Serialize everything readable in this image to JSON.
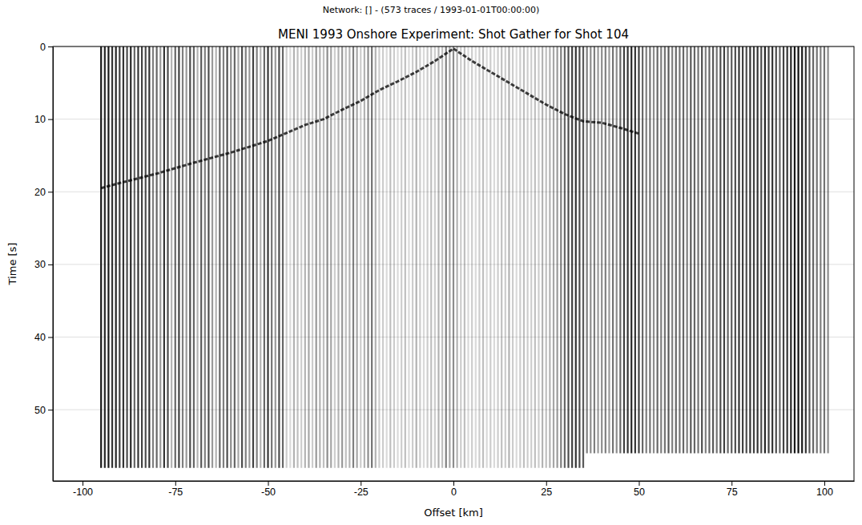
{
  "chart_data": {
    "type": "seismic_gather",
    "suptitle": "Network:  [] - (573 traces / 1993-01-01T00:00:00)",
    "title": "MENI 1993 Onshore Experiment: Shot Gather for Shot 104",
    "x_label": "Offset [km]",
    "y_label": "Time [s]",
    "xlim": [
      -108,
      108
    ],
    "ylim": [
      59.8,
      0
    ],
    "xticks": [
      -100,
      -75,
      -50,
      -25,
      0,
      25,
      50,
      75,
      100
    ],
    "yticks": [
      0,
      10,
      20,
      30,
      40,
      50
    ],
    "grid": "y",
    "color": "#000000",
    "traces": {
      "x": [
        -95,
        -94,
        -93,
        -92,
        -91,
        -90,
        -89,
        -88,
        -87,
        -86,
        -85,
        -84,
        -83,
        -82,
        -81,
        -80,
        -79,
        -78,
        -77,
        -76,
        -75,
        -74,
        -73,
        -72,
        -71,
        -70,
        -69,
        -68,
        -67,
        -66,
        -65,
        -64,
        -63,
        -62,
        -61,
        -60,
        -59,
        -58,
        -57,
        -56,
        -55,
        -54,
        -53,
        -52,
        -51,
        -50,
        -49,
        -48,
        -47,
        -46,
        -45,
        -44,
        -43,
        -42,
        -41,
        -40,
        -39,
        -38,
        -37,
        -36,
        -35,
        -34,
        -33,
        -32,
        -31,
        -30,
        -29,
        -28,
        -27,
        -26,
        -25,
        -24,
        -23,
        -22,
        -21,
        -20,
        -19,
        -18,
        -17,
        -16,
        -15,
        -14,
        -13,
        -12,
        -11,
        -10,
        -9,
        -8,
        -7,
        -6,
        -5,
        -4,
        -3,
        -2,
        -1,
        0,
        1,
        2,
        3,
        4,
        5,
        6,
        7,
        8,
        9,
        10,
        11,
        12,
        13,
        14,
        15,
        16,
        17,
        18,
        19,
        20,
        21,
        22,
        23,
        24,
        25,
        26,
        27,
        28,
        29,
        30,
        31,
        32,
        33,
        34,
        35,
        36,
        37,
        38,
        39,
        40,
        41,
        42,
        43,
        44,
        45,
        46,
        47,
        48,
        49,
        50,
        51,
        52,
        53,
        54,
        55,
        56,
        57,
        58,
        59,
        60,
        61,
        62,
        63,
        64,
        65,
        66,
        67,
        68,
        69,
        70,
        71,
        72,
        73,
        74,
        75,
        76,
        77,
        78,
        79,
        80,
        81,
        82,
        83,
        84,
        85,
        86,
        87,
        88,
        89,
        90,
        91,
        92,
        93,
        94,
        95,
        96,
        97,
        98,
        99,
        100,
        101
      ],
      "intensity": [
        0.9,
        0.85,
        0.9,
        0.8,
        0.85,
        0.75,
        0.8,
        0.7,
        0.85,
        0.6,
        0.8,
        0.75,
        0.7,
        0.8,
        0.5,
        0.6,
        0.4,
        0.8,
        0.7,
        0.3,
        0.6,
        0.75,
        0.5,
        0.4,
        0.7,
        0.6,
        0.3,
        0.65,
        0.5,
        0.7,
        0.4,
        0.3,
        0.6,
        0.5,
        0.7,
        0.45,
        0.6,
        0.35,
        0.7,
        0.5,
        0.4,
        0.75,
        0.5,
        0.3,
        0.6,
        0.8,
        0.55,
        0.4,
        0.7,
        0.6,
        0.2,
        0.15,
        0.3,
        0.25,
        0.2,
        0.3,
        0.35,
        0.2,
        0.4,
        0.3,
        0.25,
        0.45,
        0.35,
        0.2,
        0.3,
        0.4,
        0.25,
        0.3,
        0.5,
        0.35,
        0.2,
        0.3,
        0.45,
        0.55,
        0.3,
        0.2,
        0.2,
        0.15,
        0.25,
        0.2,
        0.15,
        0.2,
        0.25,
        0.15,
        0.2,
        0.3,
        0.2,
        0.15,
        0.2,
        0.25,
        0.2,
        0.3,
        0.25,
        0.5,
        0.35,
        0.45,
        0.3,
        0.2,
        0.25,
        0.15,
        0.2,
        0.15,
        0.2,
        0.25,
        0.15,
        0.2,
        0.15,
        0.2,
        0.25,
        0.2,
        0.3,
        0.2,
        0.15,
        0.2,
        0.25,
        0.2,
        0.2,
        0.25,
        0.2,
        0.3,
        0.25,
        0.3,
        0.35,
        0.4,
        0.5,
        0.6,
        0.7,
        0.75,
        0.8,
        0.7,
        0.65,
        0.5,
        0.45,
        0.5,
        0.4,
        0.45,
        0.5,
        0.4,
        0.55,
        0.45,
        0.6,
        0.75,
        0.8,
        0.85,
        0.8,
        0.75,
        0.6,
        0.5,
        0.55,
        0.45,
        0.6,
        0.5,
        0.55,
        0.65,
        0.5,
        0.6,
        0.55,
        0.6,
        0.5,
        0.65,
        0.6,
        0.55,
        0.7,
        0.5,
        0.6,
        0.65,
        0.55,
        0.7,
        0.75,
        0.6,
        0.65,
        0.7,
        0.8,
        0.75,
        0.7,
        0.8,
        0.75,
        0.8,
        0.7,
        0.85,
        0.75,
        0.8,
        0.7,
        0.6,
        0.75,
        0.8,
        0.85,
        0.9,
        0.95,
        0.9,
        0.8,
        0.65,
        0.6,
        0.55,
        0.5,
        0.55,
        0.45
      ],
      "end_time": [
        58,
        58,
        58,
        58,
        58,
        58,
        58,
        58,
        58,
        58,
        58,
        58,
        58,
        58,
        58,
        58,
        58,
        58,
        58,
        58,
        58,
        58,
        58,
        58,
        58,
        58,
        58,
        58,
        58,
        58,
        58,
        58,
        58,
        58,
        58,
        58,
        58,
        58,
        58,
        58,
        58,
        58,
        58,
        58,
        58,
        58,
        58,
        58,
        58,
        58,
        58,
        58,
        58,
        58,
        58,
        58,
        58,
        58,
        58,
        58,
        58,
        58,
        58,
        58,
        58,
        58,
        58,
        58,
        58,
        58,
        58,
        58,
        58,
        58,
        58,
        58,
        58,
        58,
        58,
        58,
        58,
        58,
        58,
        58,
        58,
        58,
        58,
        58,
        58,
        58,
        58,
        58,
        58,
        58,
        58,
        58,
        58,
        58,
        58,
        58,
        58,
        58,
        58,
        58,
        58,
        58,
        58,
        58,
        58,
        58,
        58,
        58,
        58,
        58,
        58,
        58,
        58,
        58,
        58,
        58,
        58,
        58,
        58,
        58,
        58,
        58,
        58,
        58,
        58,
        58,
        58,
        56,
        56,
        56,
        56,
        56,
        56,
        56,
        56,
        56,
        56,
        56,
        56,
        56,
        56,
        56,
        56,
        56,
        56,
        56,
        56,
        56,
        56,
        56,
        56,
        56,
        56,
        56,
        56,
        56,
        56,
        56,
        56,
        56,
        56,
        56,
        56,
        56,
        56,
        56,
        56,
        56,
        56,
        56,
        56,
        56,
        56,
        56,
        56,
        56,
        56,
        56,
        56,
        56,
        56,
        56,
        56,
        56,
        56,
        56,
        56,
        56,
        56,
        56,
        56,
        56,
        56
      ]
    },
    "first_arrivals": {
      "x": [
        -95,
        -90,
        -80,
        -70,
        -60,
        -50,
        -40,
        -35,
        -30,
        -25,
        -20,
        -15,
        -10,
        -5,
        0,
        5,
        10,
        15,
        20,
        25,
        30,
        35,
        40,
        45,
        50
      ],
      "values": [
        19.5,
        18.8,
        17.5,
        16,
        14.6,
        13,
        10.8,
        10,
        8.7,
        7.5,
        6,
        4.8,
        3.5,
        2,
        0.3,
        2,
        3.5,
        5,
        6.5,
        8,
        9.3,
        10.3,
        10.5,
        11.2,
        12
      ]
    }
  }
}
